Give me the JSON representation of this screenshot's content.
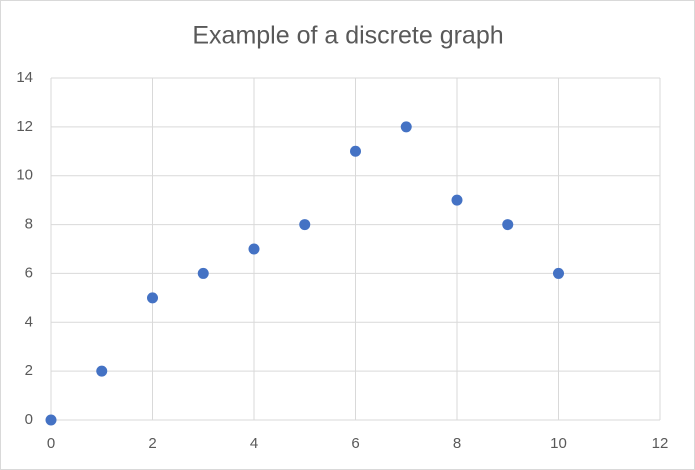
{
  "chart_data": {
    "type": "scatter",
    "title": "Example of a discrete graph",
    "x": [
      0,
      1,
      2,
      3,
      4,
      5,
      6,
      7,
      8,
      9,
      10
    ],
    "series": [
      {
        "color": "#4472c4",
        "values": [
          0,
          2,
          5,
          6,
          7,
          8,
          11,
          12,
          9,
          8,
          6
        ]
      }
    ],
    "xlim": [
      0,
      12
    ],
    "xticks": [
      0,
      2,
      4,
      6,
      8,
      10,
      12
    ],
    "ylim": [
      0,
      14
    ],
    "yticks": [
      0,
      2,
      4,
      6,
      8,
      10,
      12,
      14
    ],
    "grid": true
  }
}
